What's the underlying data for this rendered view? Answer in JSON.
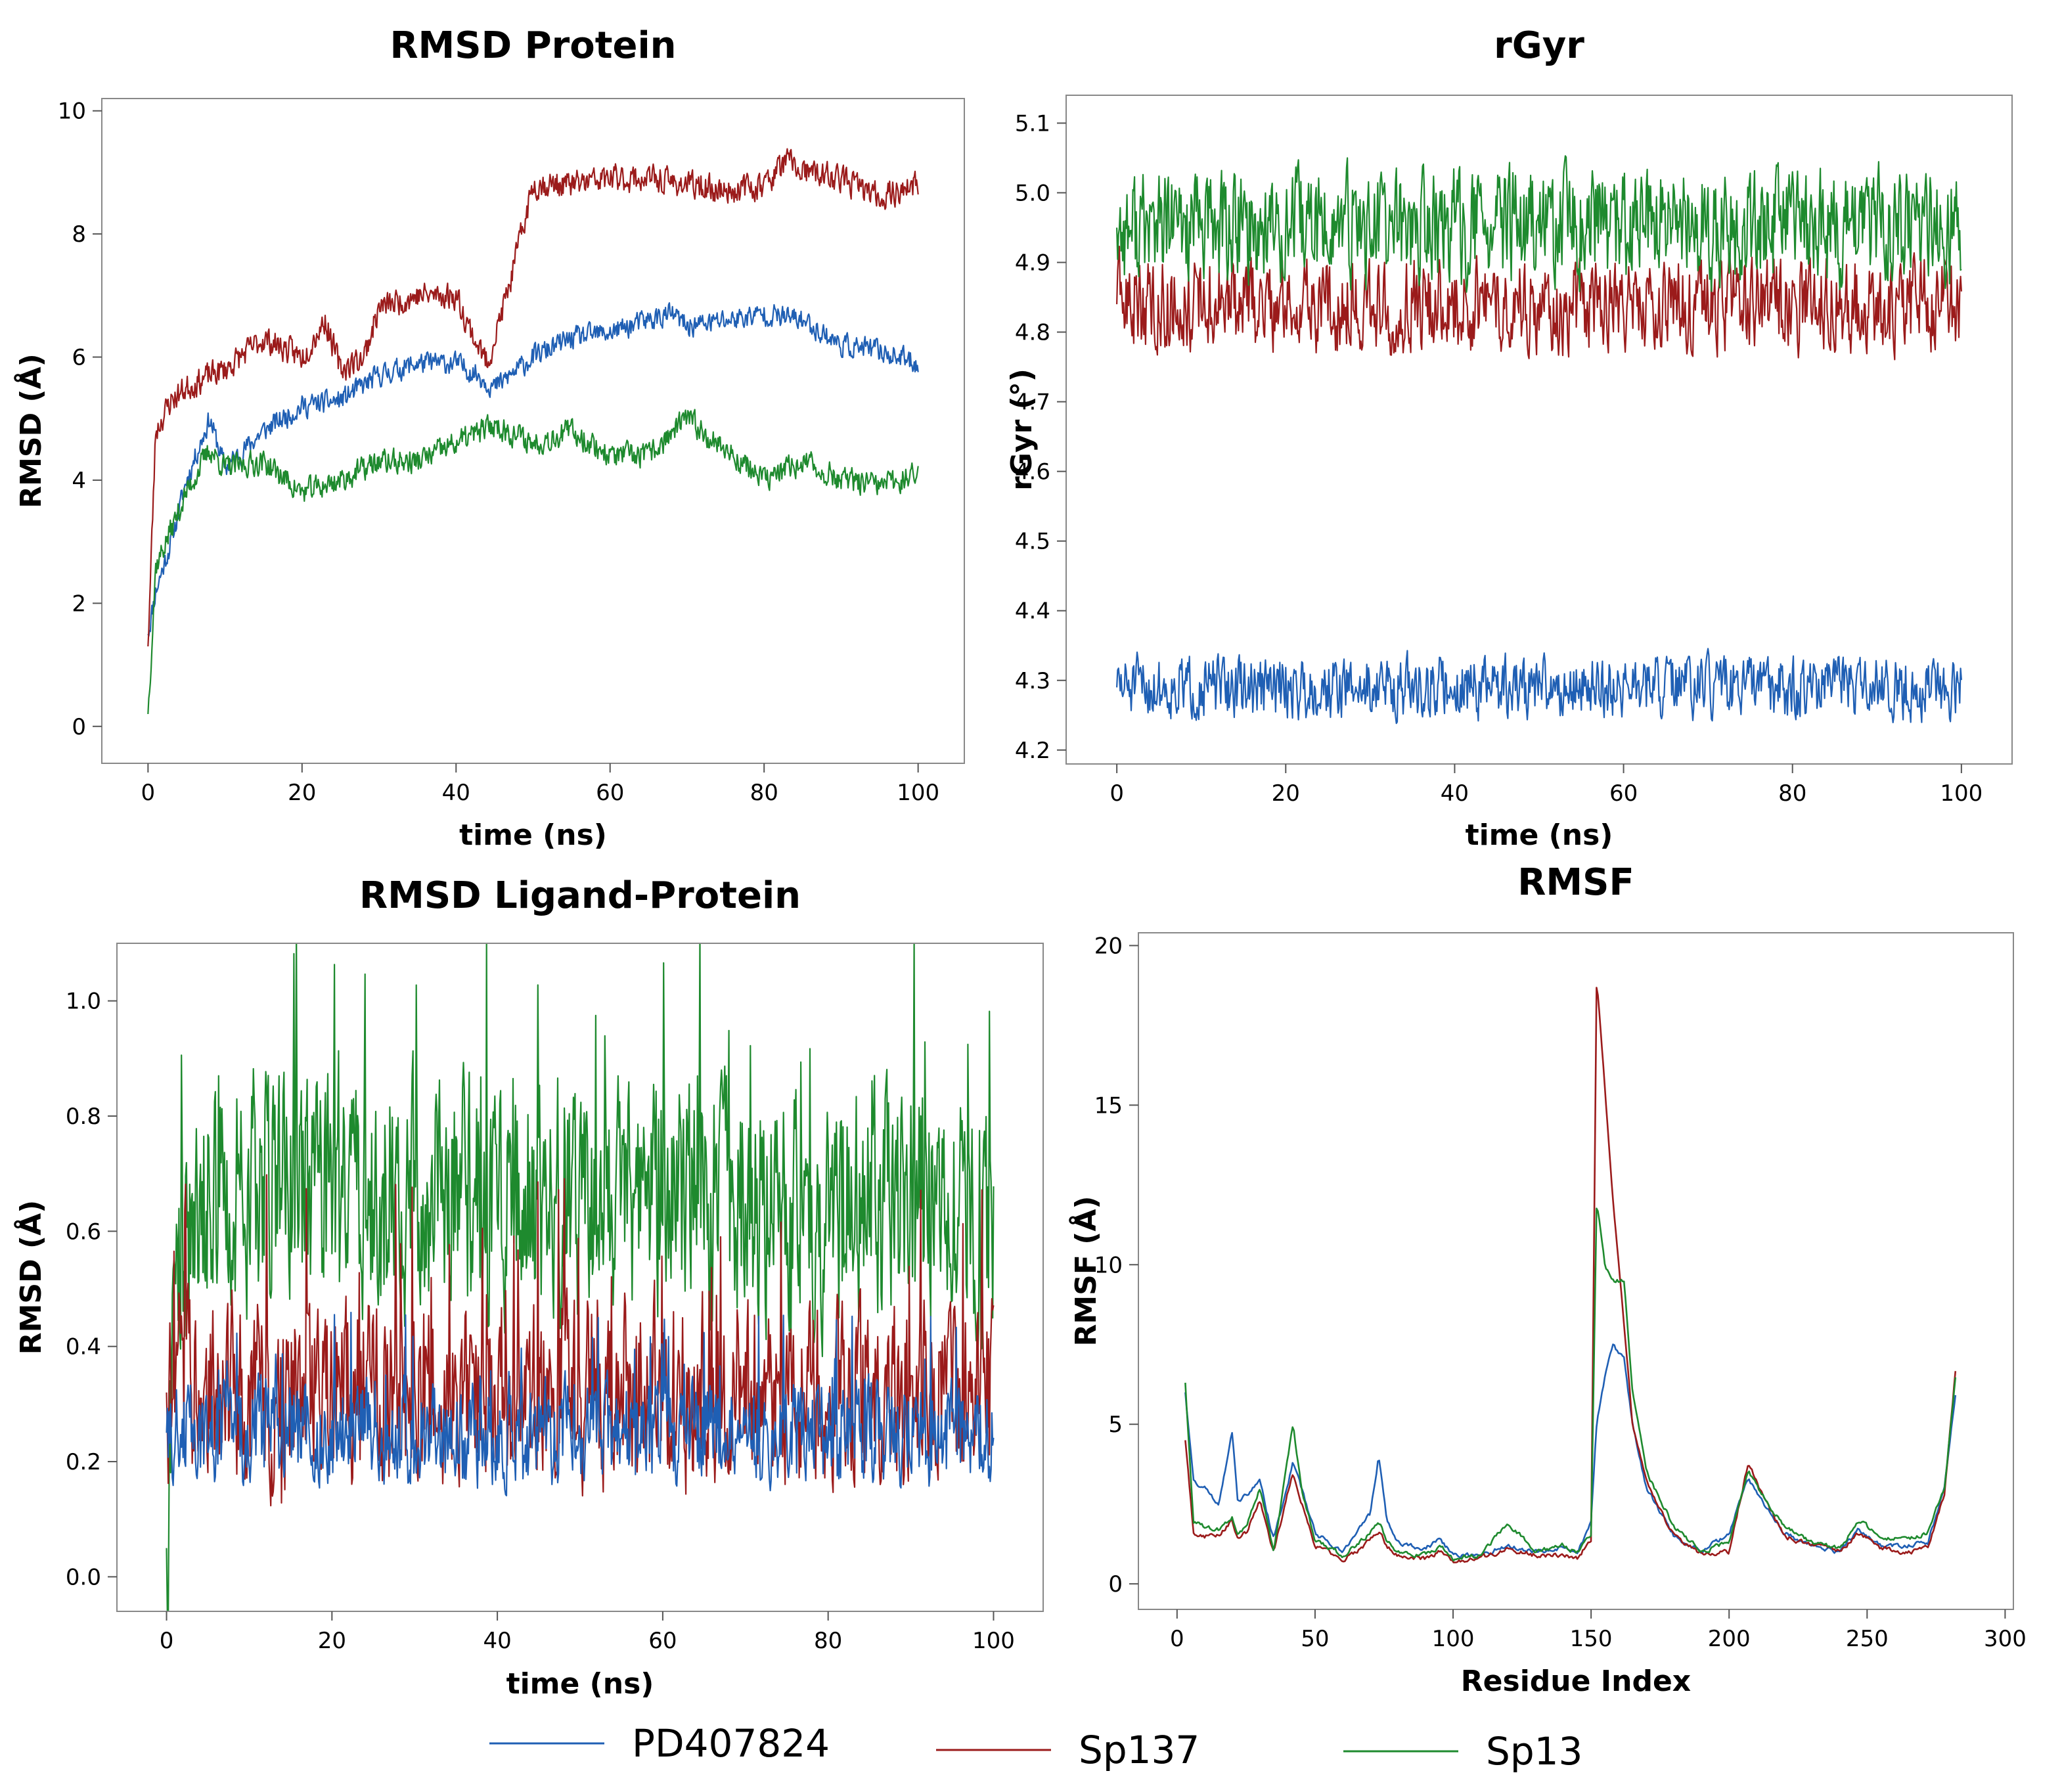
{
  "legend": [
    {
      "name": "PD407824",
      "color": "#1f5fb4"
    },
    {
      "name": "Sp137",
      "color": "#9b1b1b"
    },
    {
      "name": "Sp13",
      "color": "#1e8a2e"
    }
  ],
  "chart_data": [
    {
      "id": "rmsd_protein",
      "type": "line",
      "title": "RMSD Protein",
      "xlabel": "time (ns)",
      "ylabel": "RMSD (Å)",
      "xlim": [
        -6,
        106
      ],
      "ylim": [
        -0.6,
        10.2
      ],
      "xticks": [
        0,
        20,
        40,
        60,
        80,
        100
      ],
      "yticks": [
        0,
        2,
        4,
        6,
        8,
        10
      ],
      "grid": false,
      "series": [
        {
          "name": "PD407824",
          "color": "#1f5fb4",
          "noise": 0.25,
          "seed": 11,
          "x": [
            0,
            1,
            3,
            5,
            8,
            10,
            15,
            20,
            25,
            30,
            35,
            40,
            43,
            45,
            48,
            50,
            55,
            60,
            65,
            68,
            70,
            75,
            80,
            85,
            90,
            95,
            100
          ],
          "y": [
            1.5,
            2.2,
            3.0,
            4.0,
            5.0,
            4.2,
            4.8,
            5.2,
            5.3,
            5.7,
            5.9,
            5.9,
            5.7,
            5.5,
            5.8,
            6.0,
            6.3,
            6.4,
            6.6,
            6.7,
            6.5,
            6.6,
            6.7,
            6.6,
            6.2,
            6.1,
            5.9
          ]
        },
        {
          "name": "Sp137",
          "color": "#9b1b1b",
          "noise": 0.3,
          "seed": 23,
          "x": [
            0,
            1,
            3,
            5,
            8,
            10,
            15,
            20,
            23,
            25,
            28,
            30,
            35,
            40,
            42,
            44,
            45,
            47,
            50,
            55,
            60,
            65,
            70,
            75,
            80,
            83,
            85,
            90,
            95,
            100
          ],
          "y": [
            1.3,
            4.8,
            5.3,
            5.5,
            5.7,
            5.8,
            6.3,
            6.0,
            6.6,
            5.8,
            6.0,
            6.8,
            7.0,
            7.0,
            6.4,
            5.9,
            6.3,
            7.2,
            8.8,
            8.8,
            8.9,
            8.9,
            8.8,
            8.7,
            8.8,
            9.2,
            9.0,
            8.9,
            8.6,
            8.8
          ]
        },
        {
          "name": "Sp13",
          "color": "#1e8a2e",
          "noise": 0.28,
          "seed": 37,
          "x": [
            0,
            1,
            3,
            5,
            8,
            10,
            15,
            20,
            25,
            30,
            35,
            40,
            45,
            50,
            55,
            60,
            65,
            70,
            75,
            80,
            85,
            90,
            95,
            100
          ],
          "y": [
            0.2,
            2.6,
            3.2,
            3.8,
            4.5,
            4.2,
            4.3,
            3.8,
            4.0,
            4.3,
            4.3,
            4.6,
            4.9,
            4.6,
            4.8,
            4.4,
            4.4,
            5.0,
            4.5,
            4.0,
            4.3,
            4.0,
            3.9,
            4.1
          ]
        }
      ]
    },
    {
      "id": "rgyr",
      "type": "line",
      "title": "rGyr",
      "xlabel": "time (ns)",
      "ylabel": "rGyr (°)",
      "xlim": [
        -6,
        106
      ],
      "ylim": [
        4.18,
        5.14
      ],
      "xticks": [
        0,
        20,
        40,
        60,
        80,
        100
      ],
      "yticks": [
        4.2,
        4.3,
        4.4,
        4.5,
        4.6,
        4.7,
        4.8,
        4.9,
        5.0,
        5.1
      ],
      "grid": false,
      "series": [
        {
          "name": "PD407824",
          "color": "#1f5fb4",
          "noise": 0.06,
          "seed": 51,
          "x": [
            0,
            100
          ],
          "y": [
            4.29,
            4.29
          ]
        },
        {
          "name": "Sp137",
          "color": "#9b1b1b",
          "noise": 0.09,
          "seed": 63,
          "x": [
            0,
            100
          ],
          "y": [
            4.84,
            4.84
          ]
        },
        {
          "name": "Sp13",
          "color": "#1e8a2e",
          "noise": 0.11,
          "seed": 77,
          "x": [
            0,
            100
          ],
          "y": [
            4.95,
            4.95
          ]
        }
      ]
    },
    {
      "id": "rmsd_ligand",
      "type": "line",
      "title": "RMSD Ligand-Protein",
      "xlabel": "time (ns)",
      "ylabel": "RMSD (Å)",
      "xlim": [
        -6,
        106
      ],
      "ylim": [
        -0.06,
        1.1
      ],
      "xticks": [
        0,
        20,
        40,
        60,
        80,
        100
      ],
      "yticks": [
        0.0,
        0.2,
        0.4,
        0.6,
        0.8,
        1.0
      ],
      "grid": false,
      "series": [
        {
          "name": "Sp13",
          "color": "#1e8a2e",
          "noise": 0.28,
          "seed": 91,
          "x": [
            0,
            1,
            5,
            20,
            40,
            60,
            80,
            95,
            100
          ],
          "y": [
            0.05,
            0.55,
            0.68,
            0.66,
            0.66,
            0.66,
            0.62,
            0.68,
            0.55
          ]
        },
        {
          "name": "Sp137",
          "color": "#9b1b1b",
          "noise": 0.22,
          "seed": 103,
          "x": [
            0,
            1,
            100
          ],
          "y": [
            0.32,
            0.32,
            0.32
          ]
        },
        {
          "name": "PD407824",
          "color": "#1f5fb4",
          "noise": 0.12,
          "seed": 117,
          "x": [
            0,
            1,
            100
          ],
          "y": [
            0.25,
            0.25,
            0.25
          ]
        }
      ]
    },
    {
      "id": "rmsf",
      "type": "line",
      "title": "RMSF",
      "xlabel": "Residue Index",
      "ylabel": "RMSF (Å)",
      "xlim": [
        -14,
        303
      ],
      "ylim": [
        -0.8,
        20.4
      ],
      "xticks": [
        0,
        50,
        100,
        150,
        200,
        250,
        300
      ],
      "yticks": [
        0,
        5,
        10,
        15,
        20
      ],
      "grid": false,
      "series": [
        {
          "name": "PD407824",
          "color": "#1f5fb4",
          "noise": 0.15,
          "seed": 131,
          "x": [
            3,
            6,
            10,
            15,
            20,
            22,
            25,
            30,
            35,
            42,
            45,
            50,
            60,
            65,
            70,
            73,
            76,
            80,
            90,
            95,
            100,
            110,
            120,
            130,
            140,
            145,
            150,
            152,
            155,
            158,
            162,
            165,
            170,
            180,
            190,
            200,
            207,
            212,
            220,
            230,
            240,
            247,
            255,
            265,
            272,
            278,
            282
          ],
          "y": [
            6.0,
            3.2,
            3.0,
            2.5,
            4.8,
            2.5,
            2.8,
            3.2,
            1.4,
            3.8,
            3.0,
            1.6,
            1.0,
            1.6,
            2.2,
            4.0,
            2.0,
            1.3,
            1.1,
            1.4,
            0.9,
            0.9,
            1.2,
            1.0,
            1.1,
            0.9,
            2.0,
            5.0,
            6.5,
            7.5,
            7.0,
            5.0,
            3.0,
            1.5,
            1.0,
            1.6,
            3.3,
            2.6,
            1.6,
            1.2,
            1.0,
            1.7,
            1.2,
            1.2,
            1.3,
            3.0,
            6.0
          ]
        },
        {
          "name": "Sp137",
          "color": "#9b1b1b",
          "noise": 0.15,
          "seed": 149,
          "x": [
            3,
            6,
            10,
            15,
            20,
            22,
            25,
            30,
            35,
            42,
            45,
            50,
            60,
            65,
            70,
            73,
            76,
            80,
            90,
            95,
            100,
            110,
            120,
            130,
            140,
            145,
            150,
            152,
            155,
            158,
            162,
            165,
            170,
            180,
            190,
            200,
            207,
            212,
            220,
            230,
            240,
            247,
            255,
            265,
            272,
            278,
            282
          ],
          "y": [
            4.5,
            1.6,
            1.5,
            1.5,
            2.0,
            1.4,
            1.6,
            2.6,
            1.0,
            3.5,
            2.6,
            1.2,
            0.8,
            1.0,
            1.4,
            1.6,
            1.2,
            0.9,
            0.8,
            1.0,
            0.7,
            0.8,
            1.1,
            0.9,
            0.9,
            0.8,
            1.4,
            19.0,
            15.5,
            12.0,
            8.0,
            5.0,
            3.2,
            1.5,
            0.9,
            1.0,
            3.8,
            2.8,
            1.5,
            1.2,
            1.0,
            1.6,
            1.1,
            1.0,
            1.1,
            2.8,
            6.7
          ]
        },
        {
          "name": "Sp13",
          "color": "#1e8a2e",
          "noise": 0.15,
          "seed": 163,
          "x": [
            3,
            6,
            10,
            15,
            20,
            22,
            25,
            30,
            35,
            42,
            45,
            50,
            60,
            65,
            70,
            73,
            76,
            80,
            90,
            95,
            100,
            110,
            120,
            130,
            140,
            145,
            150,
            152,
            155,
            158,
            162,
            165,
            170,
            180,
            190,
            200,
            207,
            212,
            220,
            230,
            240,
            247,
            255,
            265,
            272,
            278,
            282
          ],
          "y": [
            6.3,
            1.9,
            1.8,
            1.7,
            2.1,
            1.6,
            1.8,
            3.0,
            1.0,
            5.0,
            3.0,
            1.4,
            0.9,
            1.2,
            1.6,
            2.0,
            1.4,
            1.0,
            0.9,
            1.2,
            0.8,
            0.9,
            1.9,
            1.0,
            1.2,
            1.0,
            1.5,
            12.0,
            10.0,
            9.5,
            9.5,
            6.0,
            3.5,
            1.8,
            1.0,
            1.3,
            3.5,
            2.8,
            1.8,
            1.3,
            1.1,
            2.0,
            1.4,
            1.4,
            1.6,
            3.0,
            6.5
          ]
        }
      ]
    }
  ]
}
